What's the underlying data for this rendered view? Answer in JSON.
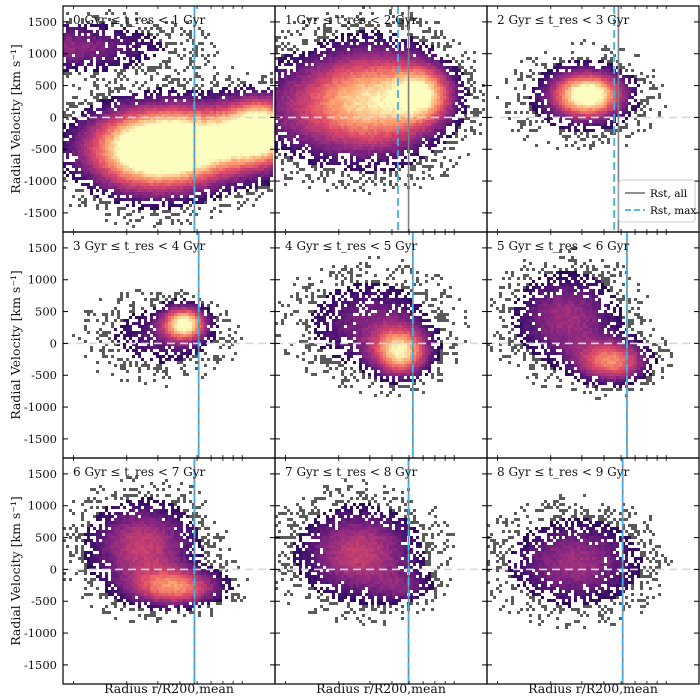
{
  "chart_data": {
    "type": "heatmap",
    "layout": "3x3 grid of panels with shared axes",
    "ylabel": "Radial Velocity [km s⁻¹]",
    "xlabel": "Radius r/R200,mean",
    "ylim": [
      -1800,
      1750
    ],
    "y_ticks": [
      1500,
      1000,
      500,
      0,
      -500,
      -1000,
      -1500
    ],
    "x_tick_labels_shown": false,
    "reference_line": {
      "y": 0,
      "style": "dashed",
      "color": "#d9d9d9"
    },
    "legend": {
      "placement": "lower-right of panel 3",
      "entries": [
        {
          "label": "Rst, all",
          "style": "solid",
          "color": "#808080"
        },
        {
          "label": "Rst, max",
          "style": "dashed",
          "color": "#3fb2e8"
        }
      ]
    },
    "colormap": [
      "#000004",
      "#3b0f70",
      "#8c2981",
      "#de4968",
      "#fe9f6d",
      "#fcfdbf"
    ],
    "panels": [
      {
        "label": "0 Gyr ≤ t_res < 1 Gyr",
        "range_gyr": [
          0,
          1
        ],
        "r_st_all": 0.62,
        "r_st_max": 0.62,
        "blobs": [
          {
            "x": 0.0,
            "y": 1100,
            "sx": 0.35,
            "sy": 280,
            "w": 0.9
          },
          {
            "x": 0.55,
            "y": -420,
            "sx": 0.28,
            "sy": 420,
            "w": 2.6
          },
          {
            "x": 0.95,
            "y": -200,
            "sx": 0.12,
            "sy": 350,
            "w": 2.2
          },
          {
            "x": 0.4,
            "y": -700,
            "sx": 0.2,
            "sy": 450,
            "w": 1.0
          }
        ]
      },
      {
        "label": "1 Gyr ≤ t_res < 2 Gyr",
        "range_gyr": [
          1,
          2
        ],
        "r_st_all": 0.63,
        "r_st_max": 0.58,
        "blobs": [
          {
            "x": 0.48,
            "y": 250,
            "sx": 0.22,
            "sy": 600,
            "w": 1.8
          },
          {
            "x": 0.7,
            "y": 350,
            "sx": 0.1,
            "sy": 300,
            "w": 1.4
          },
          {
            "x": 0.1,
            "y": 150,
            "sx": 0.25,
            "sy": 550,
            "w": 0.7
          }
        ]
      },
      {
        "label": "2 Gyr ≤ t_res < 3 Gyr",
        "range_gyr": [
          2,
          3
        ],
        "r_st_all": 0.62,
        "r_st_max": 0.6,
        "blobs": [
          {
            "x": 0.48,
            "y": 350,
            "sx": 0.11,
            "sy": 230,
            "w": 2.0
          },
          {
            "x": 0.45,
            "y": 300,
            "sx": 0.2,
            "sy": 450,
            "w": 0.6
          }
        ]
      },
      {
        "label": "3 Gyr ≤ t_res < 4 Gyr",
        "range_gyr": [
          3,
          4
        ],
        "r_st_all": 0.64,
        "r_st_max": 0.64,
        "blobs": [
          {
            "x": 0.58,
            "y": 300,
            "sx": 0.07,
            "sy": 180,
            "w": 2.0
          },
          {
            "x": 0.45,
            "y": 100,
            "sx": 0.2,
            "sy": 400,
            "w": 0.6
          }
        ]
      },
      {
        "label": "4 Gyr ≤ t_res < 5 Gyr",
        "range_gyr": [
          4,
          5
        ],
        "r_st_all": 0.65,
        "r_st_max": 0.65,
        "blobs": [
          {
            "x": 0.6,
            "y": -150,
            "sx": 0.09,
            "sy": 260,
            "w": 1.8
          },
          {
            "x": 0.45,
            "y": 300,
            "sx": 0.22,
            "sy": 500,
            "w": 0.8
          }
        ]
      },
      {
        "label": "5 Gyr ≤ t_res < 6 Gyr",
        "range_gyr": [
          5,
          6
        ],
        "r_st_all": 0.66,
        "r_st_max": 0.66,
        "blobs": [
          {
            "x": 0.6,
            "y": -300,
            "sx": 0.12,
            "sy": 230,
            "w": 1.5
          },
          {
            "x": 0.38,
            "y": 400,
            "sx": 0.18,
            "sy": 500,
            "w": 1.0
          }
        ]
      },
      {
        "label": "6 Gyr ≤ t_res < 7 Gyr",
        "range_gyr": [
          6,
          7
        ],
        "r_st_all": 0.62,
        "r_st_max": 0.62,
        "blobs": [
          {
            "x": 0.55,
            "y": -300,
            "sx": 0.15,
            "sy": 200,
            "w": 1.4
          },
          {
            "x": 0.38,
            "y": 350,
            "sx": 0.18,
            "sy": 500,
            "w": 1.2
          }
        ]
      },
      {
        "label": "7 Gyr ≤ t_res < 8 Gyr",
        "range_gyr": [
          7,
          8
        ],
        "r_st_all": 0.63,
        "r_st_max": 0.63,
        "blobs": [
          {
            "x": 0.4,
            "y": 250,
            "sx": 0.2,
            "sy": 500,
            "w": 1.2
          },
          {
            "x": 0.62,
            "y": -300,
            "sx": 0.1,
            "sy": 180,
            "w": 0.5
          }
        ]
      },
      {
        "label": "8 Gyr ≤ t_res < 9 Gyr",
        "range_gyr": [
          8,
          9
        ],
        "r_st_all": 0.64,
        "r_st_max": 0.64,
        "blobs": [
          {
            "x": 0.42,
            "y": 100,
            "sx": 0.22,
            "sy": 480,
            "w": 1.0
          }
        ]
      }
    ]
  }
}
